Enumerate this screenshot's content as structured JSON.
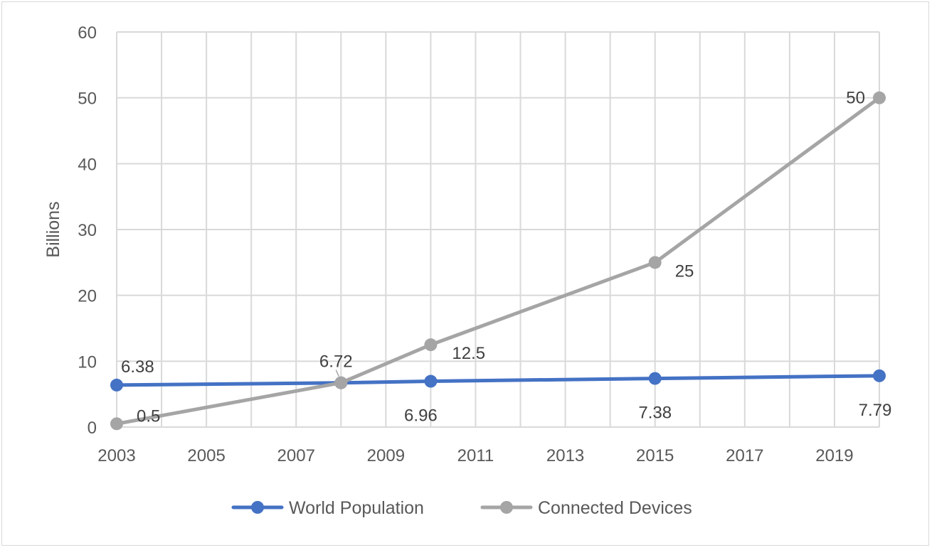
{
  "chart_data": {
    "type": "line",
    "title": "",
    "xlabel": "",
    "ylabel": "Billions",
    "xlim": [
      2003,
      2020
    ],
    "ylim": [
      0,
      60
    ],
    "x_ticks": [
      2003,
      2005,
      2007,
      2009,
      2011,
      2013,
      2015,
      2017,
      2019
    ],
    "y_ticks": [
      0,
      10,
      20,
      30,
      40,
      50,
      60
    ],
    "grid": true,
    "legend_position": "bottom",
    "series": [
      {
        "name": "World Population",
        "color": "#4472c4",
        "points": [
          {
            "x": 2003,
            "y": 6.38,
            "label": "6.38"
          },
          {
            "x": 2008,
            "y": 6.72,
            "label": ""
          },
          {
            "x": 2010,
            "y": 6.96,
            "label": "6.96"
          },
          {
            "x": 2015,
            "y": 7.38,
            "label": "7.38"
          },
          {
            "x": 2020,
            "y": 7.79,
            "label": "7.79"
          }
        ]
      },
      {
        "name": "Connected Devices",
        "color": "#a5a5a5",
        "points": [
          {
            "x": 2003,
            "y": 0.5,
            "label": "0.5"
          },
          {
            "x": 2008,
            "y": 6.72,
            "label": "6.72"
          },
          {
            "x": 2010,
            "y": 12.5,
            "label": "12.5"
          },
          {
            "x": 2015,
            "y": 25,
            "label": "25"
          },
          {
            "x": 2020,
            "y": 50,
            "label": "50"
          }
        ]
      }
    ]
  }
}
